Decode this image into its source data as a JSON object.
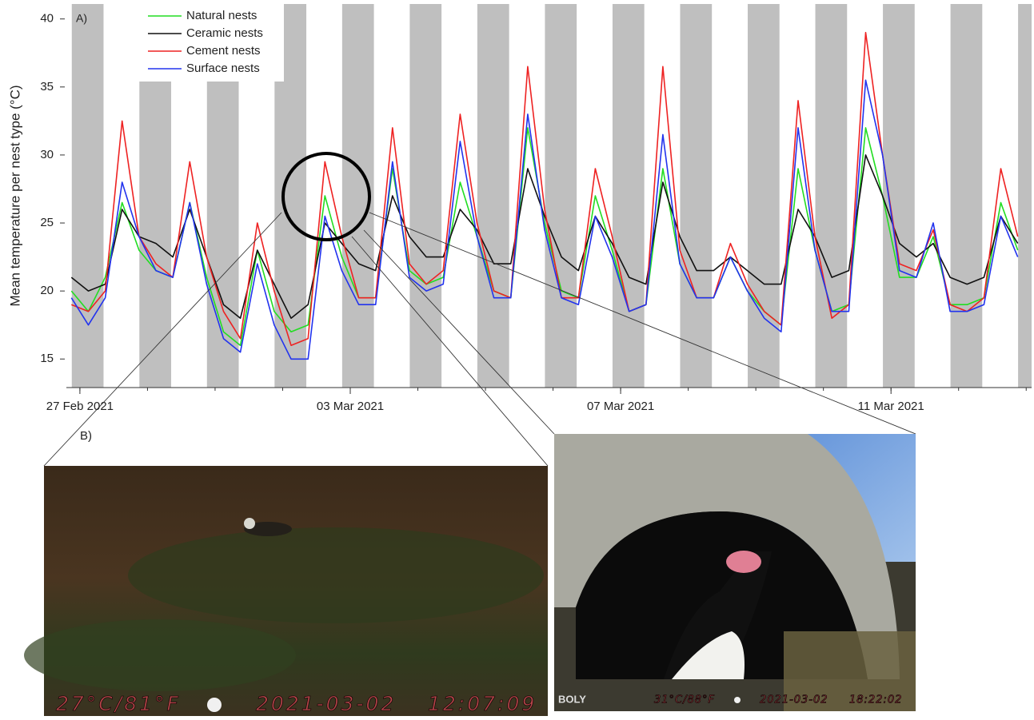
{
  "chart_data": {
    "type": "line",
    "panel_label": "A)",
    "ylabel": "Mean temperature per nest type (°C)",
    "ylim": [
      12.9,
      41.1
    ],
    "yticks": [
      15,
      20,
      25,
      30,
      35,
      40
    ],
    "xlim": [
      -0.2,
      14.08
    ],
    "xticks": [
      {
        "value": 0,
        "label": "27 Feb 2021"
      },
      {
        "value": 4,
        "label": "03 Mar 2021"
      },
      {
        "value": 8,
        "label": "07 Mar 2021"
      },
      {
        "value": 12,
        "label": "11 Mar 2021"
      }
    ],
    "xminorticks": [
      0,
      1,
      2,
      3,
      4,
      5,
      6,
      7,
      8,
      9,
      10,
      11,
      12,
      13,
      14
    ],
    "night_bands": [
      [
        -0.12,
        0.35
      ],
      [
        0.88,
        1.35
      ],
      [
        1.88,
        2.35
      ],
      [
        2.88,
        3.35
      ],
      [
        3.88,
        4.35
      ],
      [
        4.88,
        5.35
      ],
      [
        5.88,
        6.35
      ],
      [
        6.88,
        7.35
      ],
      [
        7.88,
        8.35
      ],
      [
        8.88,
        9.35
      ],
      [
        9.88,
        10.35
      ],
      [
        10.88,
        11.35
      ],
      [
        11.88,
        12.35
      ],
      [
        12.88,
        13.35
      ],
      [
        13.88,
        14.35
      ]
    ],
    "night_color": "#bfbfbf",
    "legend": "upper left",
    "x": [
      -0.125,
      0.125,
      0.375,
      0.625,
      0.875,
      1.125,
      1.375,
      1.625,
      1.875,
      2.125,
      2.375,
      2.625,
      2.875,
      3.125,
      3.375,
      3.625,
      3.875,
      4.125,
      4.375,
      4.625,
      4.875,
      5.125,
      5.375,
      5.625,
      5.875,
      6.125,
      6.375,
      6.625,
      6.875,
      7.125,
      7.375,
      7.625,
      7.875,
      8.125,
      8.375,
      8.625,
      8.875,
      9.125,
      9.375,
      9.625,
      9.875,
      10.125,
      10.375,
      10.625,
      10.875,
      11.125,
      11.375,
      11.625,
      11.875,
      12.125,
      12.375,
      12.625,
      12.875,
      13.125,
      13.375,
      13.625,
      13.875
    ],
    "series": [
      {
        "name": "Natural nests",
        "color": "#22dd22",
        "values": [
          20,
          18.5,
          21,
          26.5,
          23,
          21.5,
          21,
          26.5,
          21,
          17,
          16,
          23,
          18.5,
          17,
          17.5,
          27,
          22.5,
          19.5,
          19.5,
          29,
          21.5,
          20.5,
          21,
          28,
          24,
          20,
          19.5,
          32,
          25,
          20,
          19.5,
          27,
          23,
          18.5,
          19,
          29,
          22,
          19.5,
          19.5,
          22.5,
          20,
          18.5,
          17.5,
          29,
          23,
          18.5,
          19,
          32,
          27,
          21,
          21,
          24,
          19,
          19,
          19.5,
          26.5,
          23
        ]
      },
      {
        "name": "Ceramic nests",
        "color": "#111111",
        "values": [
          21,
          20,
          20.5,
          26,
          24,
          23.5,
          22.5,
          26,
          22.5,
          19,
          18,
          23,
          20.5,
          18,
          19,
          25,
          23.5,
          22,
          21.5,
          27,
          24,
          22.5,
          22.5,
          26,
          24.5,
          22,
          22,
          29,
          25.5,
          22.5,
          21.5,
          25.5,
          23.5,
          21,
          20.5,
          28,
          24,
          21.5,
          21.5,
          22.5,
          21.5,
          20.5,
          20.5,
          26,
          24,
          21,
          21.5,
          30,
          27,
          23.5,
          22.5,
          23.5,
          21,
          20.5,
          21,
          25.5,
          23.5
        ]
      },
      {
        "name": "Cement nests",
        "color": "#ee2222",
        "values": [
          19,
          18.5,
          20,
          32.5,
          24,
          22,
          21,
          29.5,
          22.5,
          18.5,
          16.5,
          25,
          20,
          16,
          16.5,
          29.5,
          24,
          19.5,
          19.5,
          32,
          22,
          20.5,
          21.5,
          33,
          25,
          20,
          19.5,
          36.5,
          26,
          19.5,
          19.5,
          29,
          24,
          18.5,
          19,
          36.5,
          23,
          19.5,
          19.5,
          23.5,
          20.5,
          18.5,
          17.5,
          34,
          24,
          18,
          19,
          39,
          30,
          22,
          21.5,
          24.5,
          19,
          18.5,
          19.5,
          29,
          24
        ]
      },
      {
        "name": "Surface nests",
        "color": "#2233ee",
        "values": [
          19.5,
          17.5,
          19.5,
          28,
          24,
          21.5,
          21,
          26.5,
          20.5,
          16.5,
          15.5,
          22,
          17.5,
          15,
          15,
          25.5,
          21.5,
          19,
          19,
          29.5,
          21,
          20,
          20.5,
          31,
          24,
          19.5,
          19.5,
          33,
          24.5,
          19.5,
          19,
          25.5,
          22.5,
          18.5,
          19,
          31.5,
          22,
          19.5,
          19.5,
          22.5,
          20,
          18,
          17,
          32,
          23,
          18.5,
          18.5,
          35.5,
          30,
          21.5,
          21,
          25,
          18.5,
          18.5,
          19,
          25.5,
          22.5
        ]
      }
    ]
  },
  "photo_panel": {
    "label": "B)",
    "photos": [
      {
        "overlay": [
          "27°C/81°F",
          "2021-03-02",
          "12:07:09"
        ]
      },
      {
        "brand": "BOLY",
        "overlay": [
          "31°C/88°F",
          "2021-03-02",
          "18:22:02"
        ]
      }
    ]
  }
}
